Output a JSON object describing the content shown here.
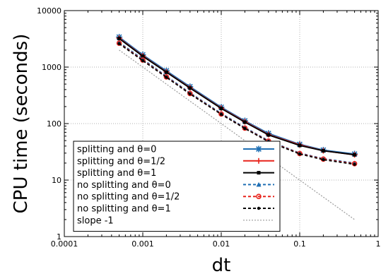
{
  "chart_data": {
    "type": "line",
    "title": "",
    "xlabel": "dt",
    "ylabel": "CPU time (seconds)",
    "xscale": "log",
    "yscale": "log",
    "xlim": [
      0.0001,
      1
    ],
    "ylim": [
      1,
      10000
    ],
    "grid": true,
    "legend_position": "bottom-left",
    "x_ticks": [
      "0.0001",
      "0.001",
      "0.01",
      "0.1",
      "1"
    ],
    "y_ticks": [
      "1",
      "10",
      "100",
      "1000",
      "10000"
    ],
    "x": [
      0.0005,
      0.001,
      0.002,
      0.004,
      0.01,
      0.02,
      0.04,
      0.1,
      0.2,
      0.5
    ],
    "series": [
      {
        "name": "splitting and θ=0",
        "color": "#1f6fb4",
        "style": "solid",
        "marker": "star",
        "values": [
          3400,
          1650,
          860,
          450,
          195,
          112,
          67,
          43,
          34,
          29
        ]
      },
      {
        "name": "splitting and θ=1/2",
        "color": "#e8231b",
        "style": "solid",
        "marker": "plus",
        "values": [
          3250,
          1580,
          820,
          430,
          188,
          108,
          64,
          42,
          33,
          28
        ]
      },
      {
        "name": "splitting and θ=1",
        "color": "#000000",
        "style": "solid",
        "marker": "square",
        "values": [
          3200,
          1560,
          810,
          425,
          185,
          106,
          63,
          41,
          33,
          28
        ]
      },
      {
        "name": "no splitting and θ=0",
        "color": "#1f6fb4",
        "style": "dashed",
        "marker": "triangle",
        "values": [
          2750,
          1380,
          690,
          350,
          152,
          85,
          50,
          30,
          24,
          20
        ]
      },
      {
        "name": "no splitting and θ=1/2",
        "color": "#e8231b",
        "style": "dashed",
        "marker": "circle",
        "values": [
          2650,
          1330,
          670,
          340,
          148,
          83,
          49,
          29.5,
          23.5,
          19.5
        ]
      },
      {
        "name": "no splitting and θ=1",
        "color": "#000000",
        "style": "dashed",
        "marker": "dot",
        "values": [
          2600,
          1300,
          660,
          335,
          146,
          82,
          48,
          29,
          23,
          19
        ]
      },
      {
        "name": "slope -1",
        "color": "#9a9a9a",
        "style": "dotted",
        "marker": "none",
        "values": [
          2000,
          1000,
          500,
          250,
          100,
          50,
          25,
          10,
          5,
          2
        ]
      }
    ]
  }
}
